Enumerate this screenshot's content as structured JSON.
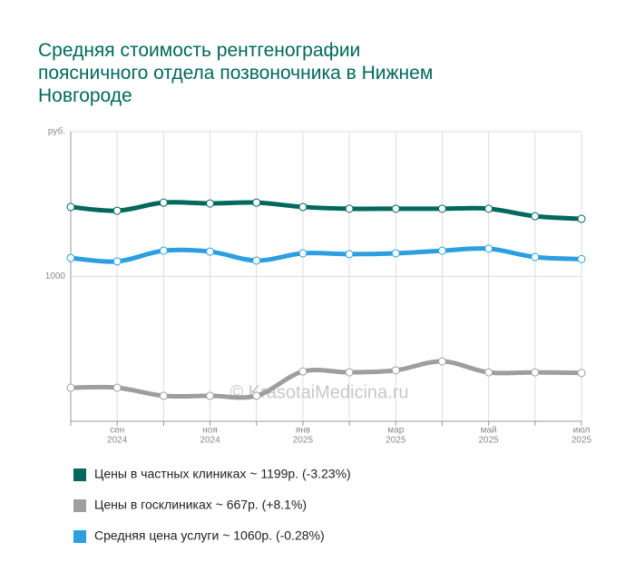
{
  "chart_data": {
    "type": "line",
    "title": [
      "Средняя стоимость рентгенографии",
      "поясничного отдела позвоночника в Нижнем",
      "Новгороде"
    ],
    "categories": [
      null,
      [
        "сен",
        "2024"
      ],
      null,
      [
        "ноя",
        "2024"
      ],
      null,
      [
        "янв",
        "2025"
      ],
      null,
      [
        "мар",
        "2025"
      ],
      null,
      [
        "май",
        "2025"
      ],
      null,
      [
        "июл",
        "2025"
      ]
    ],
    "series": [
      {
        "name": "Цены в частных клиниках ~ 1199р. (-3.23%)",
        "color": "#00695c",
        "values": [
          1240,
          1227,
          1255,
          1252,
          1255,
          1240,
          1234,
          1234,
          1234,
          1234,
          1208,
          1199
        ]
      },
      {
        "name": "Цены в госклиниках ~ 667р. (+8.1%)",
        "color": "#9e9e9e",
        "values": [
          616,
          616,
          588,
          588,
          588,
          672,
          669,
          676,
          707,
          669,
          669,
          667
        ]
      },
      {
        "name": "Средняя цена услуги ~ 1060р. (-0.28%)",
        "color": "#2b9fe0",
        "values": [
          1064,
          1052,
          1089,
          1086,
          1055,
          1080,
          1077,
          1080,
          1089,
          1096,
          1067,
          1060
        ]
      }
    ],
    "ylim": [
      500,
      1500
    ],
    "yticks": [
      1000,
      {
        "value": 1500,
        "label": "руб."
      }
    ],
    "grid": true,
    "watermark": "© KrasotaiMedicina.ru"
  }
}
